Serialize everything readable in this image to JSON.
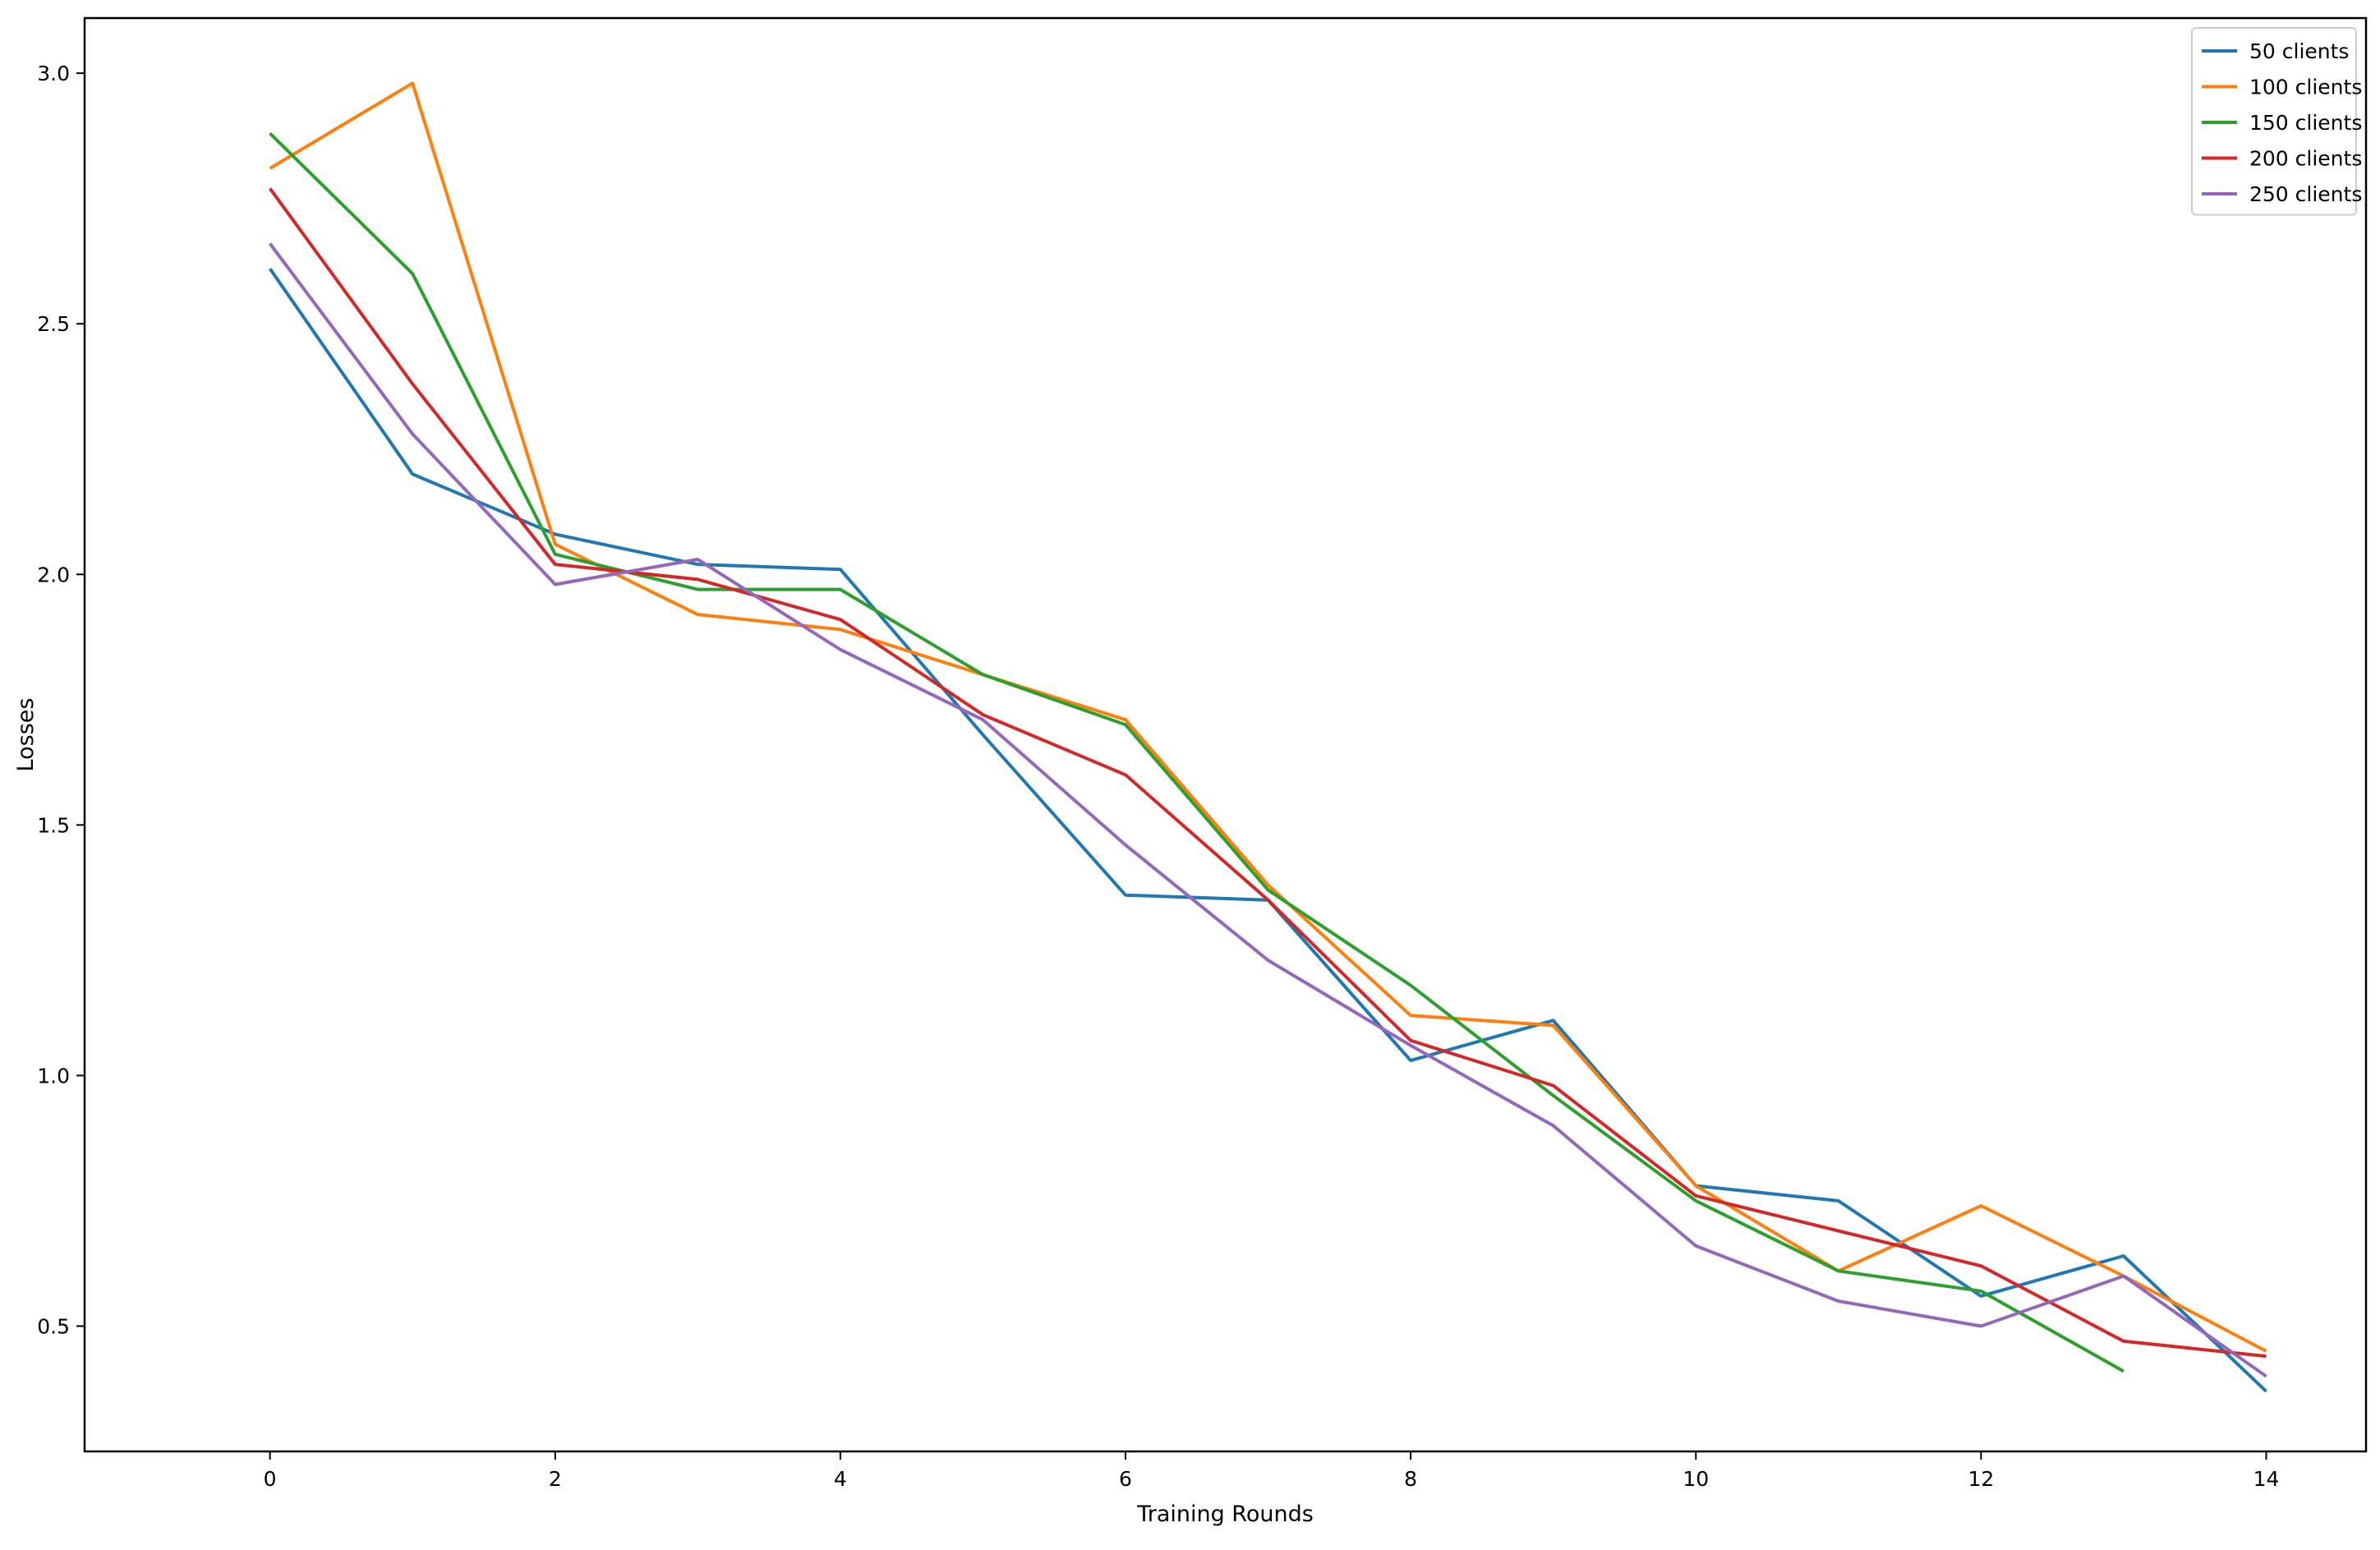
{
  "chart_data": {
    "type": "line",
    "xlabel": "Training Rounds",
    "ylabel": "Losses",
    "xlim": [
      -1.3,
      14.7
    ],
    "ylim": [
      0.25,
      3.11
    ],
    "xticks": [
      0,
      2,
      4,
      6,
      8,
      10,
      12,
      14
    ],
    "yticks": [
      0.5,
      1.0,
      1.5,
      2.0,
      2.5,
      3.0
    ],
    "ytick_labels": [
      "0.5",
      "1.0",
      "1.5",
      "2.0",
      "2.5",
      "3.0"
    ],
    "grid": false,
    "legend_position": "top-right",
    "series": [
      {
        "name": "50 clients",
        "color": "#1f77b4",
        "x": [
          0,
          1,
          2,
          3,
          4,
          5,
          6,
          7,
          8,
          9,
          10,
          11,
          12,
          13,
          14
        ],
        "y": [
          2.61,
          2.2,
          2.08,
          2.02,
          2.01,
          1.68,
          1.36,
          1.35,
          1.03,
          1.11,
          0.78,
          0.75,
          0.56,
          0.64,
          0.37
        ]
      },
      {
        "name": "100 clients",
        "color": "#ff7f0e",
        "x": [
          0,
          1,
          2,
          3,
          4,
          5,
          6,
          7,
          8,
          9,
          10,
          11,
          12,
          13,
          14
        ],
        "y": [
          2.81,
          2.98,
          2.06,
          1.92,
          1.89,
          1.8,
          1.71,
          1.38,
          1.12,
          1.1,
          0.78,
          0.61,
          0.74,
          0.6,
          0.45
        ]
      },
      {
        "name": "150 clients",
        "color": "#2ca02c",
        "x": [
          0,
          1,
          2,
          3,
          4,
          5,
          6,
          7,
          8,
          9,
          10,
          11,
          12,
          13
        ],
        "y": [
          2.88,
          2.6,
          2.04,
          1.97,
          1.97,
          1.8,
          1.7,
          1.37,
          1.18,
          0.96,
          0.75,
          0.61,
          0.57,
          0.41
        ]
      },
      {
        "name": "200 clients",
        "color": "#d62728",
        "x": [
          0,
          1,
          2,
          3,
          4,
          5,
          6,
          7,
          8,
          9,
          10,
          11,
          12,
          13,
          14
        ],
        "y": [
          2.77,
          2.38,
          2.02,
          1.99,
          1.91,
          1.72,
          1.6,
          1.35,
          1.07,
          0.98,
          0.76,
          0.69,
          0.62,
          0.47,
          0.44
        ]
      },
      {
        "name": "250 clients",
        "color": "#9467bd",
        "x": [
          0,
          1,
          2,
          3,
          4,
          5,
          6,
          7,
          8,
          9,
          10,
          11,
          12,
          13,
          14
        ],
        "y": [
          2.66,
          2.28,
          1.98,
          2.03,
          1.85,
          1.71,
          1.46,
          1.23,
          1.06,
          0.9,
          0.66,
          0.55,
          0.5,
          0.6,
          0.4
        ]
      }
    ]
  }
}
